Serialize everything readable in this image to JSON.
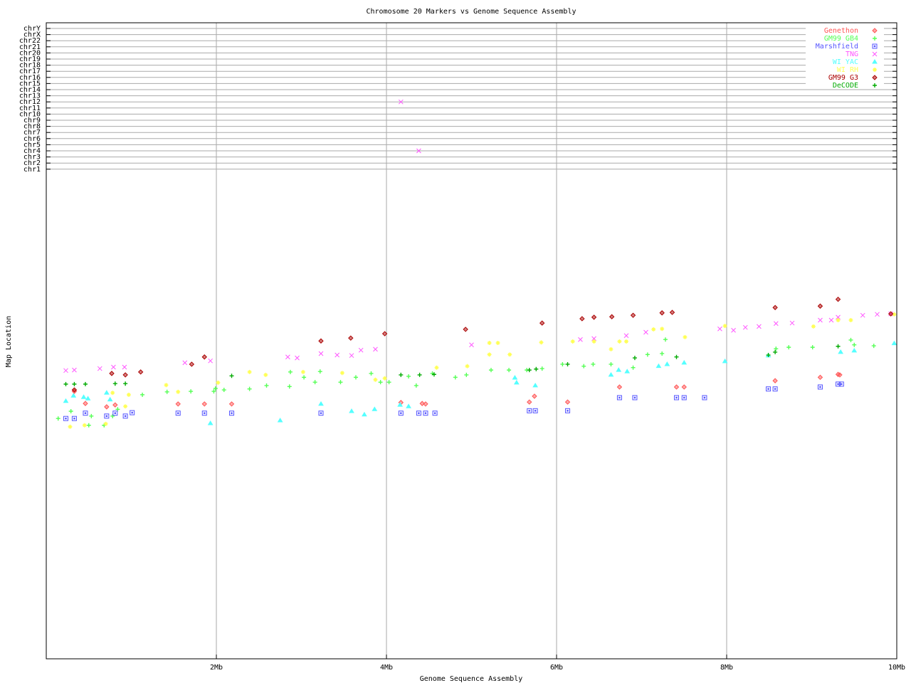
{
  "chart_data": {
    "type": "scatter",
    "title": "Chromosome 20 Markers vs Genome Sequence Assembly",
    "xlabel": "Genome Sequence Assembly",
    "ylabel": "Map Location",
    "xlim": [
      0,
      10
    ],
    "x_unit": "Mb",
    "x_ticks": [
      "2Mb",
      "4Mb",
      "6Mb",
      "8Mb",
      "10Mb"
    ],
    "ylim": [
      0,
      100
    ],
    "grid": "vertical lines at x ticks; horizontal lines per chromosome band",
    "legend_position": "top-right",
    "chromosome_axis": [
      "chrY",
      "chrX",
      "chr22",
      "chr21",
      "chr20",
      "chr19",
      "chr18",
      "chr17",
      "chr16",
      "chr15",
      "chr14",
      "chr13",
      "chr12",
      "chr11",
      "chr10",
      "chr9",
      "chr8",
      "chr7",
      "chr6",
      "chr5",
      "chr4",
      "chr3",
      "chr2",
      "chr1"
    ],
    "series": [
      {
        "name": "Genethon",
        "color": "#ff5555",
        "marker": "diamond",
        "points": [
          [
            0.33,
            55.2
          ],
          [
            0.71,
            52
          ],
          [
            0.81,
            52.4
          ],
          [
            0.46,
            52.7
          ],
          [
            1.55,
            52.6
          ],
          [
            1.86,
            52.6
          ],
          [
            2.18,
            52.6
          ],
          [
            4.17,
            52.9
          ],
          [
            4.42,
            52.7
          ],
          [
            4.46,
            52.6
          ],
          [
            5.68,
            53
          ],
          [
            5.74,
            54.2
          ],
          [
            6.13,
            53
          ],
          [
            6.74,
            56.1
          ],
          [
            7.41,
            56.1
          ],
          [
            7.5,
            56.1
          ],
          [
            8.57,
            57.4
          ],
          [
            9.1,
            58.1
          ],
          [
            9.31,
            58.7
          ],
          [
            9.33,
            58.6
          ]
        ]
      },
      {
        "name": "GM99 GB4",
        "color": "#55ff55",
        "marker": "plus",
        "points": [
          [
            0.14,
            49.6
          ],
          [
            0.29,
            51.1
          ],
          [
            0.5,
            48.2
          ],
          [
            0.53,
            50.1
          ],
          [
            0.68,
            48.2
          ],
          [
            0.78,
            50.1
          ],
          [
            0.84,
            51.5
          ],
          [
            1.13,
            54.5
          ],
          [
            1.42,
            55.1
          ],
          [
            1.7,
            55.2
          ],
          [
            1.97,
            55.2
          ],
          [
            1.99,
            55.8
          ],
          [
            2.09,
            55.5
          ],
          [
            2.39,
            55.7
          ],
          [
            2.59,
            56.4
          ],
          [
            2.86,
            56.2
          ],
          [
            2.87,
            59.2
          ],
          [
            3.03,
            58.1
          ],
          [
            3.16,
            57.1
          ],
          [
            3.22,
            59.3
          ],
          [
            3.46,
            57.1
          ],
          [
            3.64,
            58.1
          ],
          [
            3.82,
            58.9
          ],
          [
            3.93,
            57.1
          ],
          [
            4.03,
            57.1
          ],
          [
            4.26,
            58.3
          ],
          [
            4.35,
            56.4
          ],
          [
            4.54,
            58.9
          ],
          [
            4.81,
            58.1
          ],
          [
            4.94,
            58.6
          ],
          [
            5.23,
            59.6
          ],
          [
            5.44,
            59.6
          ],
          [
            5.65,
            59.6
          ],
          [
            5.83,
            59.9
          ],
          [
            6.07,
            60.8
          ],
          [
            6.32,
            60.4
          ],
          [
            6.43,
            60.8
          ],
          [
            6.64,
            60.8
          ],
          [
            6.9,
            60.1
          ],
          [
            7.07,
            62.8
          ],
          [
            7.24,
            63
          ],
          [
            7.28,
            65.9
          ],
          [
            8.58,
            64
          ],
          [
            8.73,
            64.3
          ],
          [
            9.01,
            64.3
          ],
          [
            9.46,
            65.8
          ],
          [
            9.73,
            64.6
          ],
          [
            9.5,
            64.8
          ]
        ]
      },
      {
        "name": "Marshfield",
        "color": "#5555ff",
        "marker": "square",
        "points": [
          [
            0.23,
            49.6
          ],
          [
            0.33,
            49.6
          ],
          [
            0.46,
            50.7
          ],
          [
            0.71,
            50.1
          ],
          [
            0.81,
            50.7
          ],
          [
            0.93,
            50.1
          ],
          [
            1.01,
            50.8
          ],
          [
            1.55,
            50.7
          ],
          [
            1.86,
            50.7
          ],
          [
            2.18,
            50.7
          ],
          [
            3.23,
            50.7
          ],
          [
            4.17,
            50.7
          ],
          [
            4.38,
            50.7
          ],
          [
            4.46,
            50.7
          ],
          [
            4.57,
            50.7
          ],
          [
            5.68,
            51.2
          ],
          [
            5.75,
            51.2
          ],
          [
            6.13,
            51.2
          ],
          [
            6.74,
            53.9
          ],
          [
            6.92,
            53.9
          ],
          [
            7.41,
            53.9
          ],
          [
            7.5,
            53.9
          ],
          [
            7.74,
            53.9
          ],
          [
            8.49,
            55.7
          ],
          [
            8.57,
            55.7
          ],
          [
            9.1,
            56.1
          ],
          [
            9.31,
            56.7
          ],
          [
            9.35,
            56.7
          ]
        ]
      },
      {
        "name": "TNG",
        "color": "#ff55ff",
        "marker": "cross",
        "points": [
          [
            0.23,
            59.5
          ],
          [
            0.33,
            59.6
          ],
          [
            0.63,
            59.9
          ],
          [
            0.79,
            60.2
          ],
          [
            0.92,
            60.2
          ],
          [
            1.63,
            61.1
          ],
          [
            1.93,
            61.5
          ],
          [
            2.84,
            62.3
          ],
          [
            2.95,
            62.1
          ],
          [
            3.23,
            63
          ],
          [
            3.42,
            62.7
          ],
          [
            3.59,
            62.6
          ],
          [
            3.7,
            63.7
          ],
          [
            3.87,
            63.9
          ],
          [
            5.0,
            64.8
          ],
          [
            6.28,
            65.9
          ],
          [
            6.44,
            66.1
          ],
          [
            6.82,
            66.7
          ],
          [
            7.05,
            67.4
          ],
          [
            7.92,
            68.1
          ],
          [
            8.08,
            67.8
          ],
          [
            8.22,
            68.4
          ],
          [
            8.38,
            68.6
          ],
          [
            8.58,
            69.2
          ],
          [
            8.77,
            69.3
          ],
          [
            9.1,
            69.9
          ],
          [
            9.23,
            69.9
          ],
          [
            9.31,
            70.5
          ],
          [
            9.6,
            70.9
          ],
          [
            9.77,
            71.1
          ],
          [
            9.93,
            71.2
          ]
        ],
        "chromosome_hits": [
          {
            "x": 4.17,
            "chr": "chr12"
          },
          {
            "x": 4.38,
            "chr": "chr4"
          }
        ]
      },
      {
        "name": "WI YAC",
        "color": "#55ffff",
        "marker": "triangle",
        "points": [
          [
            0.23,
            53.2
          ],
          [
            0.32,
            54.3
          ],
          [
            0.44,
            54
          ],
          [
            0.49,
            53.7
          ],
          [
            0.71,
            54.9
          ],
          [
            0.75,
            53.5
          ],
          [
            1.93,
            48.6
          ],
          [
            2.75,
            49.2
          ],
          [
            3.23,
            52.6
          ],
          [
            3.59,
            51.1
          ],
          [
            3.74,
            50.4
          ],
          [
            3.86,
            51.5
          ],
          [
            4.16,
            52.4
          ],
          [
            4.26,
            52.1
          ],
          [
            5.51,
            58
          ],
          [
            5.53,
            57
          ],
          [
            5.75,
            56.4
          ],
          [
            6.64,
            58.6
          ],
          [
            6.73,
            59.6
          ],
          [
            6.83,
            59.3
          ],
          [
            7.2,
            60.4
          ],
          [
            7.3,
            60.8
          ],
          [
            7.5,
            61.1
          ],
          [
            7.98,
            61.4
          ],
          [
            8.49,
            62.6
          ],
          [
            9.34,
            63.3
          ],
          [
            9.5,
            63.6
          ],
          [
            9.97,
            65.1
          ]
        ]
      },
      {
        "name": "WI RH",
        "color": "#ffff55",
        "marker": "star",
        "points": [
          [
            0.28,
            47.9
          ],
          [
            0.45,
            48.2
          ],
          [
            0.7,
            48.5
          ],
          [
            0.78,
            54.9
          ],
          [
            0.93,
            52.1
          ],
          [
            0.97,
            54.5
          ],
          [
            1.41,
            56.5
          ],
          [
            1.55,
            55.1
          ],
          [
            2.02,
            57
          ],
          [
            2.39,
            59.2
          ],
          [
            2.58,
            58.6
          ],
          [
            3.02,
            59.2
          ],
          [
            3.48,
            59
          ],
          [
            3.87,
            57.6
          ],
          [
            3.98,
            57.9
          ],
          [
            4.59,
            60.1
          ],
          [
            4.95,
            60.4
          ],
          [
            5.21,
            65.2
          ],
          [
            5.31,
            65.2
          ],
          [
            5.21,
            62.8
          ],
          [
            5.45,
            62.8
          ],
          [
            5.82,
            65.3
          ],
          [
            6.19,
            65.5
          ],
          [
            6.44,
            65.5
          ],
          [
            6.64,
            63.9
          ],
          [
            6.74,
            65.5
          ],
          [
            6.82,
            65.5
          ],
          [
            7.14,
            68
          ],
          [
            7.24,
            68.1
          ],
          [
            7.51,
            66.4
          ],
          [
            7.98,
            68.7
          ],
          [
            9.02,
            68.6
          ],
          [
            9.31,
            69.9
          ],
          [
            9.46,
            69.9
          ],
          [
            9.97,
            71.1
          ]
        ]
      },
      {
        "name": "GM99 G3",
        "color": "#aa0000",
        "marker": "diamond",
        "points": [
          [
            0.33,
            55.5
          ],
          [
            0.77,
            58.9
          ],
          [
            0.93,
            58.6
          ],
          [
            1.11,
            59.2
          ],
          [
            1.71,
            60.8
          ],
          [
            1.86,
            62.3
          ],
          [
            3.23,
            65.6
          ],
          [
            3.58,
            66.2
          ],
          [
            3.98,
            67.1
          ],
          [
            4.93,
            68
          ],
          [
            5.83,
            69.3
          ],
          [
            6.3,
            70.2
          ],
          [
            6.44,
            70.5
          ],
          [
            6.65,
            70.6
          ],
          [
            6.9,
            70.9
          ],
          [
            7.24,
            71.4
          ],
          [
            7.36,
            71.5
          ],
          [
            8.57,
            72.5
          ],
          [
            9.1,
            72.8
          ],
          [
            9.31,
            74.2
          ],
          [
            9.93,
            71.2
          ]
        ]
      },
      {
        "name": "DeCODE",
        "color": "#00aa00",
        "marker": "plus",
        "points": [
          [
            0.23,
            56.7
          ],
          [
            0.33,
            56.7
          ],
          [
            0.46,
            56.7
          ],
          [
            0.81,
            56.8
          ],
          [
            0.93,
            56.8
          ],
          [
            2.18,
            58.4
          ],
          [
            4.17,
            58.6
          ],
          [
            4.39,
            58.6
          ],
          [
            4.56,
            58.7
          ],
          [
            5.68,
            59.6
          ],
          [
            5.76,
            59.8
          ],
          [
            6.13,
            60.8
          ],
          [
            6.92,
            62.1
          ],
          [
            7.41,
            62.3
          ],
          [
            8.49,
            62.7
          ],
          [
            8.57,
            63.3
          ],
          [
            9.31,
            64.5
          ]
        ]
      }
    ]
  }
}
